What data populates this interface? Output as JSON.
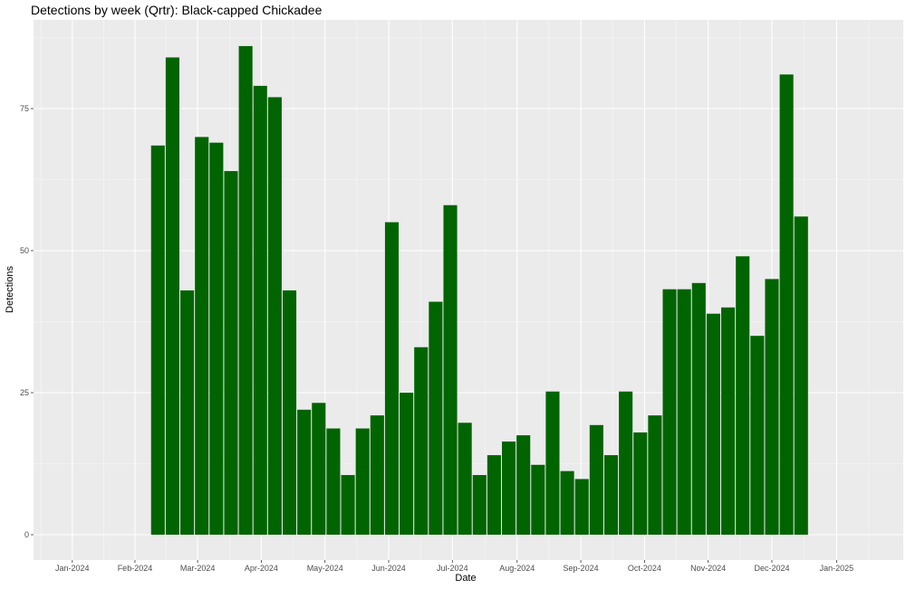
{
  "chart_data": {
    "type": "bar",
    "title": "Detections by week (Qrtr): Black-capped Chickadee",
    "xlabel": "Date",
    "ylabel": "Detections",
    "ylim": [
      0,
      90
    ],
    "yticks": [
      0,
      25,
      50,
      75
    ],
    "x_tick_labels": [
      "Jan-2024",
      "Feb-2024",
      "Mar-2024",
      "Apr-2024",
      "May-2024",
      "Jun-2024",
      "Jul-2024",
      "Aug-2024",
      "Sep-2024",
      "Oct-2024",
      "Nov-2024",
      "Dec-2024",
      "Jan-2025"
    ],
    "grid": true,
    "bar_color": "#006400",
    "panel_color": "#ebebeb",
    "grid_color": "#ffffff",
    "weeks": [
      "2024-02-26",
      "2024-03-04",
      "2024-03-11",
      "2024-03-18",
      "2024-03-25",
      "2024-04-01",
      "2024-04-08",
      "2024-04-15",
      "2024-04-22",
      "2024-04-29",
      "2024-05-06",
      "2024-05-13",
      "2024-05-20",
      "2024-05-27",
      "2024-06-03",
      "2024-06-10",
      "2024-06-17",
      "2024-06-24",
      "2024-07-01",
      "2024-07-08",
      "2024-07-15",
      "2024-07-22",
      "2024-07-29",
      "2024-08-05",
      "2024-08-12",
      "2024-08-19",
      "2024-08-26",
      "2024-09-02",
      "2024-09-09",
      "2024-09-16",
      "2024-09-23",
      "2024-09-30",
      "2024-10-07",
      "2024-10-14",
      "2024-10-21",
      "2024-10-28",
      "2024-11-04",
      "2024-11-11",
      "2024-11-18",
      "2024-11-25",
      "2024-12-02",
      "2024-12-09",
      "2024-12-16",
      "2024-12-23",
      "2024-12-30"
    ],
    "values": [
      68.5,
      84,
      43,
      70,
      69,
      64,
      86,
      79,
      77,
      43,
      22,
      23.2,
      18.7,
      10.5,
      18.7,
      21,
      55,
      25,
      33,
      41,
      58,
      19.7,
      10.5,
      14,
      16.4,
      17.5,
      12.3,
      25.2,
      11.2,
      9.8,
      19.3,
      14,
      25.2,
      18,
      21,
      43.2,
      43.2,
      44.3,
      38.9,
      40,
      49,
      35,
      45,
      81,
      56
    ]
  }
}
